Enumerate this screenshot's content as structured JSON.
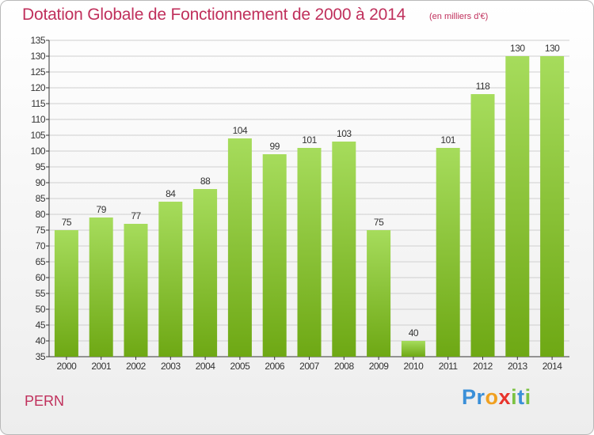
{
  "title": "Dotation Globale de Fonctionnement de 2000 à 2014",
  "unit": "(en milliers d'€)",
  "commune": "PERN",
  "brand": {
    "letters": [
      "P",
      "r",
      "o",
      "x",
      "i",
      "t",
      "i"
    ],
    "colors": [
      "#3a8fd8",
      "#3a8fd8",
      "#f0a020",
      "#e8342c",
      "#7cc242",
      "#3a8fd8",
      "#7cc242"
    ]
  },
  "colors": {
    "title": "#c0305c",
    "bar_top": "#a6dc5c",
    "bar_bottom": "#6ea814",
    "grid": "#cfcfcf"
  },
  "chart_data": {
    "type": "bar",
    "title": "Dotation Globale de Fonctionnement de 2000 à 2014",
    "subtitle": "(en milliers d'€)",
    "xlabel": "",
    "ylabel": "",
    "categories": [
      "2000",
      "2001",
      "2002",
      "2003",
      "2004",
      "2005",
      "2006",
      "2007",
      "2008",
      "2009",
      "2010",
      "2011",
      "2012",
      "2013",
      "2014"
    ],
    "values": [
      75,
      79,
      77,
      84,
      88,
      104,
      99,
      101,
      103,
      75,
      40,
      101,
      118,
      130,
      130
    ],
    "ylim": [
      35,
      135
    ],
    "ytick_step": 5,
    "grid": true,
    "data_labels": true
  }
}
